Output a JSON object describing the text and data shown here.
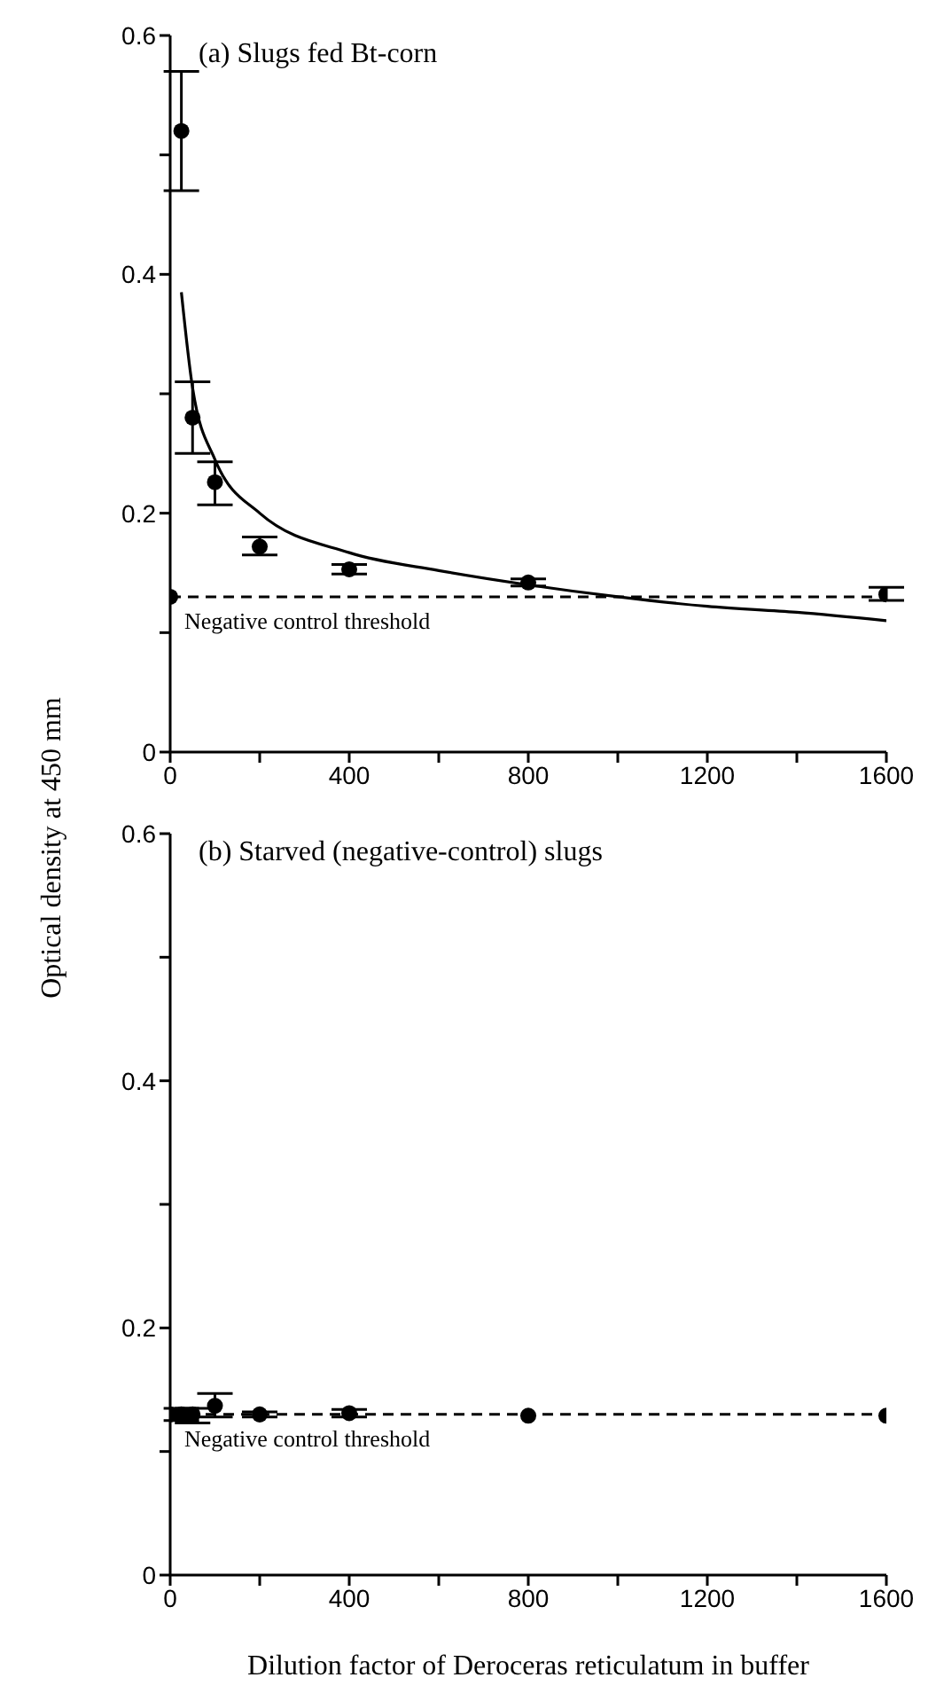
{
  "chart_data": [
    {
      "type": "scatter",
      "title": "(a) Slugs fed Bt-corn",
      "ylabel": "Optical density at 450 mm",
      "marker": "circle",
      "grid": false,
      "legend": false,
      "xlim": [
        0,
        1600
      ],
      "xticks": [
        0,
        {
          "value": 200,
          "label": null
        },
        400,
        {
          "value": 600,
          "label": null
        },
        800,
        {
          "value": 1000,
          "label": null
        },
        1200,
        {
          "value": 1400,
          "label": null
        },
        1600
      ],
      "ylim": [
        0,
        0.6
      ],
      "yticks": [
        0,
        {
          "value": 0.1,
          "label": null
        },
        0.2,
        {
          "value": 0.3,
          "label": null
        },
        0.4,
        {
          "value": 0.5,
          "label": null
        },
        0.6
      ],
      "ref_lines": [
        {
          "axis": "y",
          "value": 0.13,
          "label": "Negative control threshold",
          "color": "#000000",
          "line_style": "dashed"
        }
      ],
      "series": [
        {
          "color": "#000000",
          "x": [
            0,
            25,
            50,
            100,
            200,
            400,
            800,
            1600
          ],
          "values": [
            0.13,
            0.52,
            0.28,
            0.226,
            0.172,
            0.153,
            0.142,
            0.132
          ],
          "errors": [
            null,
            [
              0.47,
              0.57
            ],
            [
              0.25,
              0.31
            ],
            [
              0.207,
              0.243
            ],
            [
              0.165,
              0.18
            ],
            [
              0.149,
              0.157
            ],
            [
              0.139,
              0.145
            ],
            [
              0.127,
              0.138
            ]
          ]
        },
        {
          "type": "line",
          "color": "#000000",
          "marker": "none",
          "line_style": "solid",
          "x": [
            25,
            50,
            100,
            200,
            400,
            600,
            800,
            1000,
            1200,
            1400,
            1600
          ],
          "values": [
            0.385,
            0.305,
            0.245,
            0.2,
            0.167,
            0.152,
            0.14,
            0.13,
            0.122,
            0.117,
            0.11
          ]
        }
      ]
    },
    {
      "type": "scatter",
      "title": "(b) Starved (negative-control) slugs",
      "xlabel": "Dilution factor of Deroceras reticulatum in buffer",
      "marker": "circle",
      "grid": false,
      "legend": false,
      "xlim": [
        0,
        1600
      ],
      "xticks": [
        0,
        {
          "value": 200,
          "label": null
        },
        400,
        {
          "value": 600,
          "label": null
        },
        800,
        {
          "value": 1000,
          "label": null
        },
        1200,
        {
          "value": 1400,
          "label": null
        },
        1600
      ],
      "ylim": [
        0,
        0.6
      ],
      "yticks": [
        0,
        {
          "value": 0.1,
          "label": null
        },
        0.2,
        {
          "value": 0.3,
          "label": null
        },
        0.4,
        {
          "value": 0.5,
          "label": null
        },
        0.6
      ],
      "ref_lines": [
        {
          "axis": "y",
          "value": 0.13,
          "label": "Negative control threshold",
          "color": "#000000",
          "line_style": "dashed"
        }
      ],
      "series": [
        {
          "color": "#000000",
          "x": [
            0,
            25,
            50,
            100,
            200,
            400,
            800,
            1600
          ],
          "values": [
            0.13,
            0.13,
            0.13,
            0.137,
            0.13,
            0.131,
            0.129,
            0.129
          ],
          "errors": [
            null,
            [
              0.125,
              0.135
            ],
            [
              0.123,
              0.135
            ],
            [
              0.128,
              0.147
            ],
            [
              0.128,
              0.132
            ],
            [
              0.128,
              0.134
            ],
            null,
            null
          ]
        }
      ]
    }
  ]
}
